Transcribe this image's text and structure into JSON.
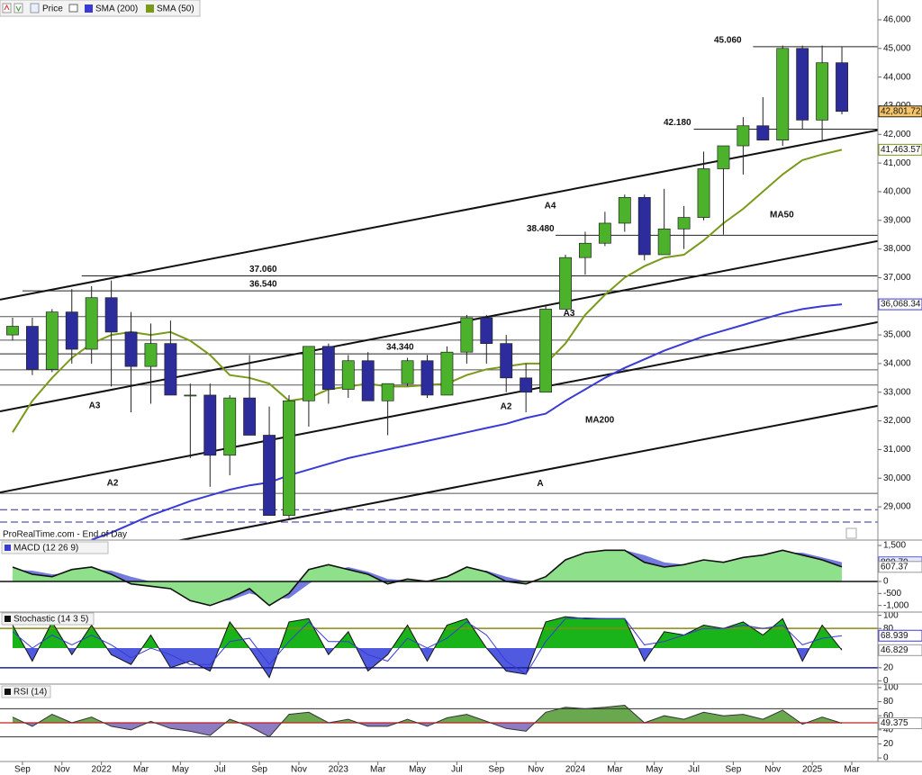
{
  "chart_data": [
    {
      "type": "candlestick",
      "name": "Price",
      "x": [
        "2021-08",
        "2021-09",
        "2021-10",
        "2021-11",
        "2021-12",
        "2022-01",
        "2022-02",
        "2022-03",
        "2022-04",
        "2022-05",
        "2022-06",
        "2022-07",
        "2022-08",
        "2022-09",
        "2022-10",
        "2022-11",
        "2022-12",
        "2023-01",
        "2023-02",
        "2023-03",
        "2023-04",
        "2023-05",
        "2023-06",
        "2023-07",
        "2023-08",
        "2023-09",
        "2023-10",
        "2023-11",
        "2023-12",
        "2024-01",
        "2024-02",
        "2024-03",
        "2024-04",
        "2024-05",
        "2024-06",
        "2024-07",
        "2024-08",
        "2024-09",
        "2024-10",
        "2024-11",
        "2024-12",
        "2025-01",
        "2025-02"
      ],
      "open": [
        35000,
        35300,
        33800,
        35800,
        34500,
        36300,
        35100,
        33900,
        34700,
        32900,
        32900,
        30800,
        32800,
        31500,
        28700,
        32700,
        34600,
        33100,
        34100,
        32700,
        33300,
        34100,
        32900,
        34400,
        35600,
        34700,
        33500,
        33000,
        35900,
        37700,
        38200,
        38900,
        39800,
        37800,
        38700,
        39100,
        40800,
        41600,
        42300,
        41800,
        45000,
        42500,
        44500
      ],
      "high": [
        35600,
        35600,
        35900,
        36600,
        36700,
        36900,
        35800,
        35400,
        35500,
        33300,
        33300,
        32900,
        34300,
        32500,
        32900,
        34600,
        34700,
        34300,
        34400,
        33300,
        34200,
        34300,
        34600,
        35700,
        35700,
        35000,
        34000,
        36000,
        37800,
        38600,
        39300,
        39900,
        39900,
        40100,
        39500,
        41400,
        41600,
        42600,
        43300,
        45100,
        45100,
        45100,
        45060
      ],
      "low": [
        34800,
        33600,
        33700,
        34000,
        34000,
        33200,
        32300,
        32600,
        32900,
        30700,
        29700,
        30100,
        31500,
        28700,
        28600,
        31800,
        32600,
        32800,
        32700,
        31500,
        33200,
        32800,
        32900,
        34000,
        34000,
        33000,
        32300,
        33000,
        35900,
        37100,
        38100,
        38600,
        37600,
        37800,
        38000,
        39000,
        38500,
        40600,
        41800,
        41600,
        42200,
        41800,
        42700
      ],
      "close": [
        35300,
        33800,
        35800,
        34500,
        36300,
        35100,
        33900,
        34700,
        32900,
        32900,
        30800,
        32800,
        31500,
        28700,
        32700,
        34600,
        33100,
        34100,
        32700,
        33300,
        34100,
        32900,
        34400,
        35600,
        34700,
        33500,
        33000,
        35900,
        37700,
        38200,
        38900,
        39800,
        37800,
        38700,
        39100,
        40800,
        41600,
        42300,
        41800,
        45000,
        42500,
        44500,
        42801.72
      ],
      "last_close_label": "42,801.72",
      "up_color": "#4cb22c",
      "down_color": "#2c2c9c",
      "series": [
        {
          "name": "SMA (200)",
          "color": "#3a3ad6",
          "last_value_label": "36,068.34",
          "values": [
            null,
            null,
            null,
            null,
            27850,
            28100,
            28400,
            28700,
            28950,
            29200,
            29400,
            29600,
            29750,
            29850,
            30100,
            30300,
            30500,
            30700,
            30850,
            31000,
            31150,
            31300,
            31450,
            31600,
            31750,
            31900,
            32100,
            32250,
            32700,
            33100,
            33500,
            33850,
            34150,
            34450,
            34700,
            34950,
            35150,
            35350,
            35550,
            35750,
            35900,
            36000,
            36068.34
          ]
        },
        {
          "name": "SMA (50)",
          "color": "#7a9a1a",
          "last_value_label": "41,463.57",
          "values": [
            31600,
            32700,
            33500,
            34200,
            34700,
            35000,
            35100,
            35000,
            35100,
            34800,
            34300,
            33600,
            33500,
            33300,
            32700,
            32800,
            33100,
            33200,
            33300,
            33200,
            33200,
            33250,
            33300,
            33600,
            33800,
            33900,
            34000,
            34000,
            34700,
            35700,
            36400,
            37000,
            37400,
            37700,
            37800,
            38300,
            38900,
            39400,
            40000,
            40600,
            41100,
            41300,
            41463.57
          ]
        }
      ],
      "xlim": [
        "2021-08",
        "2025-03"
      ],
      "xticks": [
        {
          "value": "2021-09",
          "label": "Sep"
        },
        {
          "value": "2021-11",
          "label": "Nov"
        },
        {
          "value": "2022-01",
          "label": "2022"
        },
        {
          "value": "2022-03",
          "label": "Mar"
        },
        {
          "value": "2022-05",
          "label": "May"
        },
        {
          "value": "2022-07",
          "label": "Jul"
        },
        {
          "value": "2022-09",
          "label": "Sep"
        },
        {
          "value": "2022-11",
          "label": "Nov"
        },
        {
          "value": "2023-01",
          "label": "2023"
        },
        {
          "value": "2023-03",
          "label": "Mar"
        },
        {
          "value": "2023-05",
          "label": "May"
        },
        {
          "value": "2023-07",
          "label": "Jul"
        },
        {
          "value": "2023-09",
          "label": "Sep"
        },
        {
          "value": "2023-11",
          "label": "Nov"
        },
        {
          "value": "2024-01",
          "label": "2024"
        },
        {
          "value": "2024-03",
          "label": "Mar"
        },
        {
          "value": "2024-05",
          "label": "May"
        },
        {
          "value": "2024-07",
          "label": "Jul"
        },
        {
          "value": "2024-09",
          "label": "Sep"
        },
        {
          "value": "2024-11",
          "label": "Nov"
        },
        {
          "value": "2025-01",
          "label": "2025"
        },
        {
          "value": "2025-03",
          "label": "Mar"
        }
      ],
      "ylim": [
        27840,
        46690
      ],
      "yticks": [
        {
          "value": 29000,
          "label": "29,000"
        },
        {
          "value": 30000,
          "label": "30,000"
        },
        {
          "value": 31000,
          "label": "31,000"
        },
        {
          "value": 32000,
          "label": "32,000"
        },
        {
          "value": 33000,
          "label": "33,000"
        },
        {
          "value": 34000,
          "label": "34,000"
        },
        {
          "value": 35000,
          "label": "35,000"
        },
        {
          "value": 36000,
          "label": "36,000"
        },
        {
          "value": 37000,
          "label": "37,000"
        },
        {
          "value": 38000,
          "label": "38,000"
        },
        {
          "value": 39000,
          "label": "39,000"
        },
        {
          "value": 40000,
          "label": "40,000"
        },
        {
          "value": 41000,
          "label": "41,000"
        },
        {
          "value": 42000,
          "label": "42,000"
        },
        {
          "value": 43000,
          "label": "43,000"
        },
        {
          "value": 44000,
          "label": "44,000"
        },
        {
          "value": 45000,
          "label": "45,000"
        },
        {
          "value": 46000,
          "label": "46,000"
        }
      ],
      "levels": [
        {
          "value": 45060,
          "label": "45.060",
          "from": "2024-10"
        },
        {
          "value": 42180,
          "label": "42.180",
          "from": "2024-07"
        },
        {
          "value": 38480,
          "label": "38.480",
          "from": "2023-12"
        },
        {
          "value": 37060,
          "label": "37.060",
          "from": "2021-12"
        },
        {
          "value": 36540,
          "label": "36.540",
          "from": "2021-09"
        },
        {
          "value": 34340,
          "label": "34.340"
        }
      ],
      "lines": [
        35640,
        34820,
        33780,
        33250,
        29470
      ],
      "dashed_lines": [
        28900,
        28470
      ],
      "trendlines": [
        {
          "label": "A4",
          "start": 36250,
          "end": 41970
        },
        {
          "label": "A3",
          "start": 32350,
          "end": 38100
        },
        {
          "label": "A2",
          "start": 29520,
          "end": 35270
        },
        {
          "label": "A",
          "start": 26640,
          "end": 32350
        }
      ],
      "annotations": [
        {
          "text": "MA50",
          "color": "#e03030"
        },
        {
          "text": "MA200",
          "color": "#2a2ab8"
        }
      ],
      "source": "ProRealTime.com - End of Day"
    },
    {
      "type": "macd",
      "title": "MACD (12 26 9)",
      "values": [
        600,
        300,
        200,
        500,
        600,
        300,
        -100,
        -200,
        -300,
        -800,
        -1000,
        -700,
        -300,
        -1000,
        -500,
        500,
        700,
        500,
        300,
        -100,
        100,
        0,
        200,
        600,
        400,
        0,
        -100,
        200,
        900,
        1200,
        1300,
        1300,
        800,
        600,
        700,
        900,
        800,
        1000,
        1100,
        1300,
        1100,
        900,
        607.37
      ],
      "signal": [
        500,
        450,
        300,
        350,
        500,
        450,
        200,
        0,
        -200,
        -500,
        -800,
        -800,
        -500,
        -700,
        -700,
        -100,
        400,
        600,
        400,
        100,
        50,
        50,
        100,
        400,
        450,
        200,
        0,
        50,
        500,
        900,
        1200,
        1300,
        1100,
        800,
        700,
        800,
        800,
        900,
        1000,
        1200,
        1200,
        1000,
        800.7
      ],
      "signal_last_label": "800.70",
      "color": "#8fe08a",
      "signal_color": "#5a64d8",
      "ylim": [
        -1275,
        1725
      ],
      "yticks": [
        {
          "value": -1000,
          "label": "-1,000"
        },
        -500,
        0,
        {
          "value": 1500,
          "label": "1,500"
        }
      ]
    },
    {
      "type": "stochastic",
      "title": "Stochastic (14 3 5)",
      "k": [
        85,
        30,
        90,
        40,
        85,
        40,
        25,
        70,
        20,
        30,
        15,
        90,
        50,
        5,
        90,
        95,
        40,
        75,
        15,
        40,
        85,
        30,
        85,
        95,
        50,
        15,
        10,
        90,
        98,
        95,
        95,
        95,
        30,
        75,
        70,
        85,
        80,
        90,
        70,
        95,
        30,
        85,
        46.829
      ],
      "d": [
        75,
        50,
        70,
        55,
        70,
        55,
        35,
        50,
        40,
        25,
        25,
        60,
        65,
        25,
        60,
        90,
        60,
        60,
        40,
        30,
        65,
        50,
        65,
        90,
        70,
        30,
        10,
        60,
        95,
        96,
        95,
        95,
        55,
        60,
        70,
        80,
        80,
        85,
        80,
        85,
        55,
        65,
        68.939
      ],
      "ylim": [
        -5,
        105
      ],
      "yticks": [
        0,
        20,
        80,
        100
      ],
      "bands": [
        80,
        20
      ],
      "midline": 50
    },
    {
      "type": "rsi",
      "title": "RSI (14)",
      "values": [
        58,
        45,
        62,
        50,
        58,
        45,
        40,
        52,
        42,
        38,
        32,
        55,
        45,
        30,
        62,
        65,
        50,
        55,
        45,
        45,
        55,
        45,
        57,
        62,
        52,
        42,
        38,
        65,
        72,
        70,
        72,
        75,
        50,
        60,
        55,
        65,
        60,
        62,
        55,
        68,
        48,
        58,
        49.375
      ],
      "ylim": [
        -5,
        105
      ],
      "yticks": [
        0,
        20,
        40,
        60,
        80,
        100
      ],
      "bands": [
        70,
        30
      ],
      "midline": 50
    }
  ]
}
